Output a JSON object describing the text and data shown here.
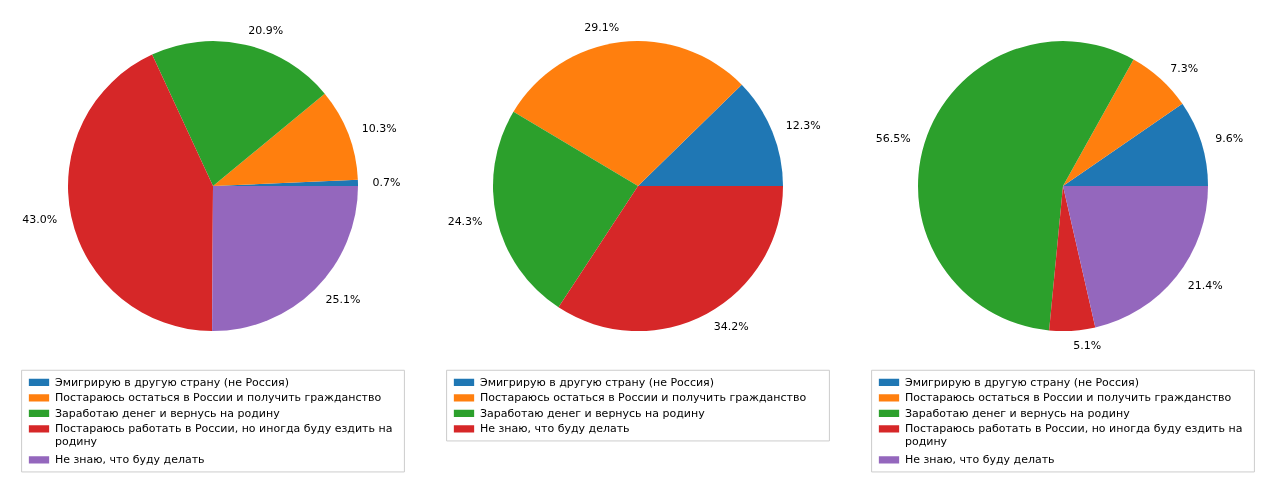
{
  "chart_data": [
    {
      "type": "pie",
      "categories": [
        "Эмигрирую в другую страну (не Россия)",
        "Постараюсь остаться в России и получить гражданство",
        "Заработаю денег и вернусь на родину",
        "Постараюсь работать в России, но иногда буду ездить на родину",
        "Не знаю, что буду делать"
      ],
      "values": [
        0.7,
        10.3,
        20.9,
        43.0,
        25.1
      ],
      "colors": [
        "#1f77b4",
        "#ff7f0e",
        "#2ca02c",
        "#d62728",
        "#9467bd"
      ],
      "value_labels": [
        "0.7%",
        "10.3%",
        "20.9%",
        "43.0%",
        "25.1%"
      ],
      "legend": "bottom"
    },
    {
      "type": "pie",
      "categories": [
        "Эмигрирую в другую страну (не Россия)",
        "Постараюсь остаться в России и получить гражданство",
        "Заработаю денег и вернусь на родину",
        "Не знаю, что буду делать"
      ],
      "values": [
        12.3,
        29.1,
        24.3,
        34.2
      ],
      "colors": [
        "#1f77b4",
        "#ff7f0e",
        "#2ca02c",
        "#d62728"
      ],
      "value_labels": [
        "12.3%",
        "29.1%",
        "24.3%",
        "34.2%"
      ],
      "legend": "bottom"
    },
    {
      "type": "pie",
      "categories": [
        "Эмигрирую в другую страну (не Россия)",
        "Постараюсь остаться в России и получить гражданство",
        "Заработаю денег и вернусь на родину",
        "Постараюсь работать в России, но иногда буду ездить на родину",
        "Не знаю, что буду делать"
      ],
      "values": [
        9.6,
        7.3,
        56.5,
        5.1,
        21.4
      ],
      "colors": [
        "#1f77b4",
        "#ff7f0e",
        "#2ca02c",
        "#d62728",
        "#9467bd"
      ],
      "value_labels": [
        "9.6%",
        "7.3%",
        "56.5%",
        "5.1%",
        "21.4%"
      ],
      "legend": "bottom"
    }
  ]
}
